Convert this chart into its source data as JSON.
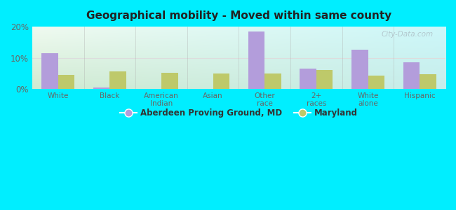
{
  "title": "Geographical mobility - Moved within same county",
  "categories": [
    "White",
    "Black",
    "American\nIndian",
    "Asian",
    "Other\nrace",
    "2+\nraces",
    "White\nalone",
    "Hispanic"
  ],
  "aberdeen_values": [
    11.5,
    0.5,
    0.0,
    0.0,
    18.5,
    6.5,
    12.5,
    8.5
  ],
  "maryland_values": [
    4.5,
    5.5,
    5.2,
    5.0,
    5.0,
    6.0,
    4.2,
    4.8
  ],
  "bar_color_aberdeen": "#b39ddb",
  "bar_color_maryland": "#bec96a",
  "background_outer": "#00eeff",
  "ylim": [
    0,
    20
  ],
  "yticks": [
    0,
    10,
    20
  ],
  "yticklabels": [
    "0%",
    "10%",
    "20%"
  ],
  "legend_aberdeen": "Aberdeen Proving Ground, MD",
  "legend_maryland": "Maryland",
  "watermark": "City-Data.com",
  "bar_width": 0.32,
  "separator_color": "#aaaaaa",
  "grid_color": "#dddddd",
  "tick_color": "#666666",
  "title_color": "#222222"
}
